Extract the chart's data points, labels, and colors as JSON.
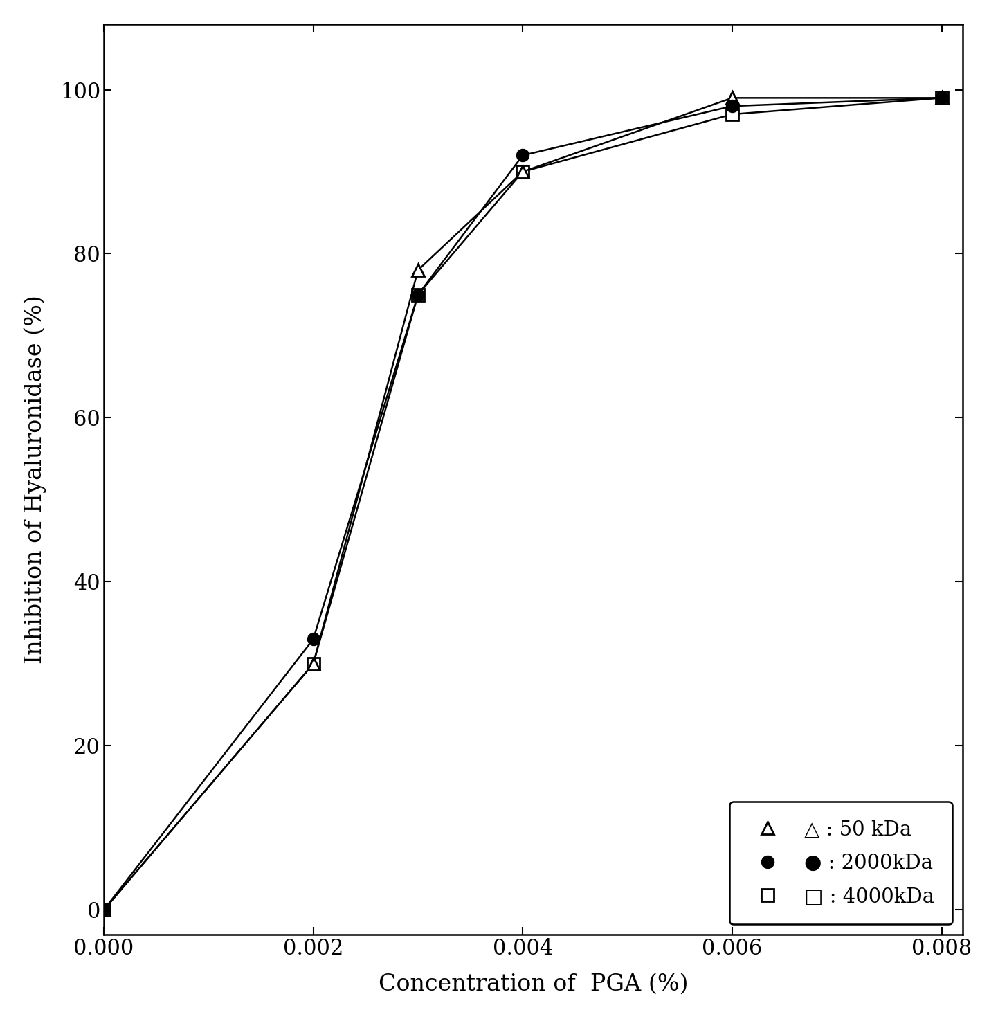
{
  "series": [
    {
      "label": "△ : 50 kDa",
      "x": [
        0.0,
        0.002,
        0.003,
        0.004,
        0.006,
        0.008
      ],
      "y": [
        0,
        30,
        78,
        90,
        99,
        99
      ],
      "marker": "^",
      "fillstyle": "none",
      "markersize": 13,
      "linewidth": 1.8,
      "zorder": 3
    },
    {
      "label": "● : 2000kDa",
      "x": [
        0.0,
        0.002,
        0.003,
        0.004,
        0.006,
        0.008
      ],
      "y": [
        0,
        33,
        75,
        92,
        98,
        99
      ],
      "marker": "o",
      "fillstyle": "full",
      "markersize": 13,
      "linewidth": 1.8,
      "zorder": 4
    },
    {
      "label": "□ : 4000kDa",
      "x": [
        0.0,
        0.002,
        0.003,
        0.004,
        0.006,
        0.008
      ],
      "y": [
        0,
        30,
        75,
        90,
        97,
        99
      ],
      "marker": "s",
      "fillstyle": "none",
      "markersize": 13,
      "linewidth": 1.8,
      "zorder": 2
    }
  ],
  "xlabel": "Concentration of  PGA (%)",
  "ylabel": "Inhibition of Hyaluronidase (%)",
  "xlim": [
    0.0,
    0.0082
  ],
  "ylim": [
    -3,
    108
  ],
  "xticks": [
    0.0,
    0.002,
    0.004,
    0.006,
    0.008
  ],
  "yticks": [
    0,
    20,
    40,
    60,
    80,
    100
  ],
  "xtick_labels": [
    "0.000",
    "0.002",
    "0.004",
    "0.006",
    "0.008"
  ],
  "ytick_labels": [
    "0",
    "20",
    "40",
    "60",
    "80",
    "100"
  ],
  "legend_labels": [
    "△ : 50 kDa",
    "● : 2000kDa",
    "□ : 4000kDa"
  ],
  "background_color": "#ffffff",
  "font_size": 24,
  "tick_font_size": 22,
  "legend_font_size": 21
}
